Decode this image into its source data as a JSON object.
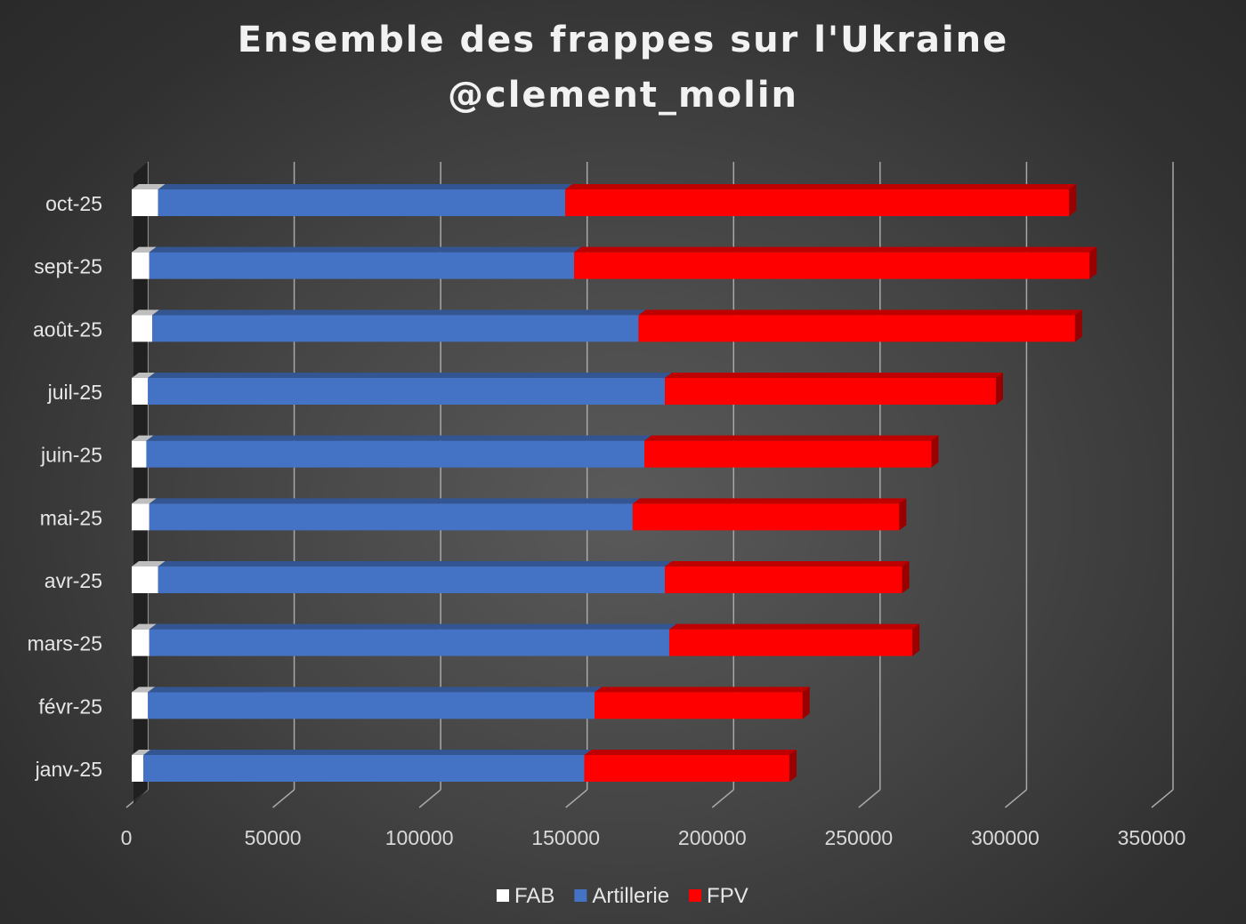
{
  "chart_data": {
    "type": "bar",
    "orientation": "horizontal",
    "stacked": true,
    "title": "Ensemble des frappes sur l'Ukraine",
    "subtitle": "@clement_molin",
    "categories": [
      "janv-25",
      "févr-25",
      "mars-25",
      "avr-25",
      "mai-25",
      "juin-25",
      "juil-25",
      "août-25",
      "sept-25",
      "oct-25"
    ],
    "series": [
      {
        "name": "FAB",
        "color": "#ffffff",
        "values": [
          4000,
          5500,
          6000,
          9000,
          6000,
          5000,
          5500,
          7000,
          6000,
          9000
        ]
      },
      {
        "name": "Artillerie",
        "color": "#4472c4",
        "values": [
          150500,
          152500,
          177500,
          173000,
          165000,
          170000,
          176500,
          166000,
          145000,
          139000
        ]
      },
      {
        "name": "FPV",
        "color": "#ff0000",
        "values": [
          70000,
          71000,
          83000,
          81000,
          91000,
          98000,
          113000,
          149000,
          176000,
          172000
        ]
      }
    ],
    "xticks": [
      0,
      50000,
      100000,
      150000,
      200000,
      250000,
      300000,
      350000
    ],
    "xtick_labels": [
      "0",
      "50000",
      "100000",
      "150000",
      "200000",
      "250000",
      "300000",
      "350000"
    ],
    "xlim": [
      0,
      350000
    ],
    "grid": true,
    "legend_position": "bottom"
  }
}
